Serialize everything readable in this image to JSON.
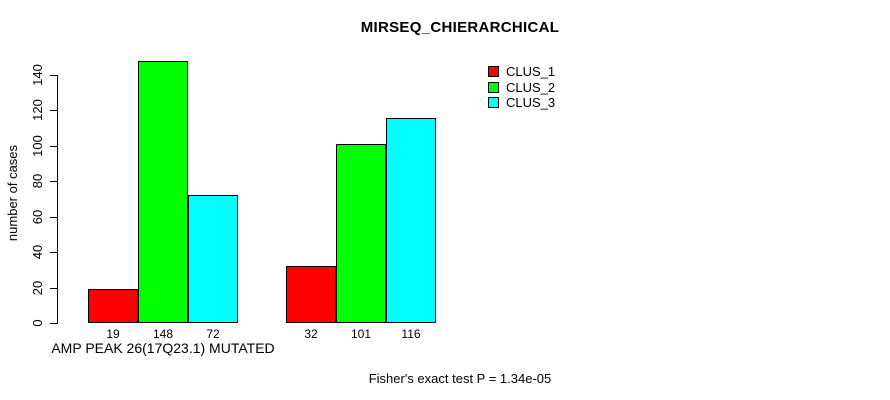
{
  "chart_data": {
    "type": "bar",
    "title": "MIRSEQ_CHIERARCHICAL",
    "ylabel": "number of cases",
    "xlabel": "AMP PEAK 26(17Q23.1) MUTATED",
    "annotation": "Fisher's exact test P = 1.34e-05",
    "ylim": [
      0,
      140
    ],
    "yticks": [
      0,
      20,
      40,
      60,
      80,
      100,
      120,
      140
    ],
    "grid": false,
    "bar_value_labels_shown": true,
    "legend_position": "top-right",
    "series": [
      {
        "name": "CLUS_1",
        "color": "#FF0000",
        "values": [
          19,
          32
        ]
      },
      {
        "name": "CLUS_2",
        "color": "#00FF00",
        "values": [
          148,
          101
        ]
      },
      {
        "name": "CLUS_3",
        "color": "#00FFFF",
        "values": [
          72,
          116
        ]
      }
    ],
    "colors": {
      "background": "#FFFFFF",
      "text": "#000000",
      "bar_border": "#000000"
    }
  }
}
